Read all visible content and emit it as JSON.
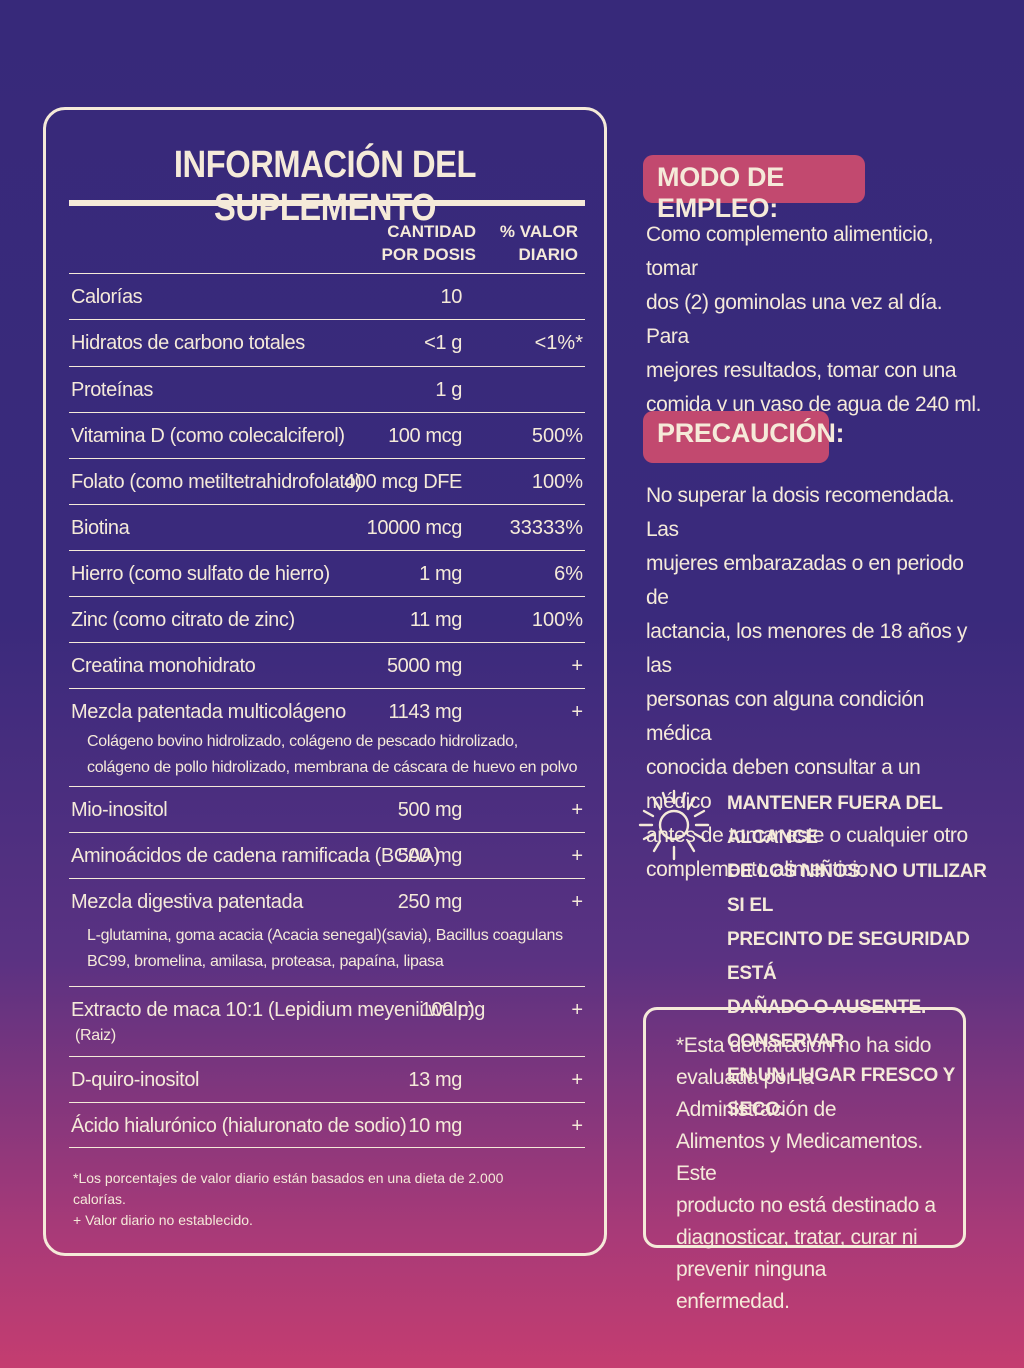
{
  "panel": {
    "title": "INFORMACIÓN DEL SUPLEMENTO",
    "header_qty": "CANTIDAD\nPOR DOSIS",
    "header_dv": "% VALOR\nDIARIO",
    "rows": [
      {
        "name": "Calorías",
        "qty": "10",
        "dv": ""
      },
      {
        "name": "Hidratos de carbono totales",
        "qty": "<1 g",
        "dv": "<1%*"
      },
      {
        "name": "Proteínas",
        "qty": "1 g",
        "dv": ""
      },
      {
        "name": "Vitamina D (como colecalciferol)",
        "qty": "100 mcg",
        "dv": "500%"
      },
      {
        "name": "Folato (como metiltetrahidrofolato)",
        "qty": "400 mcg DFE",
        "dv": "100%"
      },
      {
        "name": "Biotina",
        "qty": "10000 mcg",
        "dv": "33333%"
      },
      {
        "name": "Hierro (como sulfato de hierro)",
        "qty": "1 mg",
        "dv": "6%"
      },
      {
        "name": "Zinc (como citrato de zinc)",
        "qty": "11 mg",
        "dv": "100%"
      },
      {
        "name": "Creatina monohidrato",
        "qty": "5000 mg",
        "dv": "+"
      },
      {
        "name": "Mezcla patentada multicolágeno",
        "qty": "1143 mg",
        "dv": "+",
        "sub": "Colágeno bovino hidrolizado, colágeno de pescado hidrolizado,\ncolágeno de pollo hidrolizado, membrana de cáscara de huevo en polvo"
      },
      {
        "name": "Mio-inositol",
        "qty": "500 mg",
        "dv": "+"
      },
      {
        "name": "Aminoácidos de cadena ramificada (BCAA)",
        "qty": "500 mg",
        "dv": "+"
      },
      {
        "name": "Mezcla digestiva patentada",
        "qty": "250 mg",
        "dv": "+",
        "sub": "L-glutamina, goma acacia (Acacia senegal)(savia), Bacillus coagulans\nBC99, bromelina, amilasa, proteasa, papaína, lipasa"
      },
      {
        "name": "Extracto de maca 10:1 (Lepidium meyenii walp)",
        "qty": "100 mg",
        "dv": "+",
        "sub": "(Raiz)"
      },
      {
        "name": "D-quiro-inositol",
        "qty": "13 mg",
        "dv": "+"
      },
      {
        "name": "Ácido hialurónico (hialuronato de sodio)",
        "qty": "10 mg",
        "dv": "+"
      }
    ],
    "footnote_1": "*Los porcentajes de valor diario están basados en una dieta de 2.000\n  calorías.",
    "footnote_2": "+ Valor diario no establecido."
  },
  "usage": {
    "title": "MODO DE EMPLEO:",
    "text": "Como complemento alimenticio, tomar\ndos (2) gominolas una vez al día. Para\nmejores resultados, tomar con una\ncomida y un vaso de agua de 240 ml."
  },
  "caution": {
    "title": "PRECAUCIÓN:",
    "text": "No superar la dosis recomendada. Las\nmujeres embarazadas o en periodo de\nlactancia, los menores de 18 años y las\npersonas con alguna condición médica\nconocida deben consultar a un médico\nantes de tomar este o cualquier otro\ncomplemento alimenticio."
  },
  "warning": {
    "icon": "sun-icon",
    "text": "MANTENER FUERA DEL ALCANCE\nDE LOS NIÑOS. NO UTILIZAR SI EL\nPRECINTO DE SEGURIDAD ESTÁ\nDAÑADO O AUSENTE. CONSERVAR\nEN UN LUGAR FRESCO Y SECO."
  },
  "disclaimer": {
    "text": "*Esta declaración no ha sido\nevaluada por la Administración de\nAlimentos y Medicamentos. Este\nproducto no está destinado a\ndiagnosticar, tratar, curar ni\nprevenir ninguna enfermedad."
  },
  "colors": {
    "background_top": "#37297a",
    "background_bottom": "#c43d70",
    "text": "#f5ead9",
    "pill": "#c2496f"
  }
}
